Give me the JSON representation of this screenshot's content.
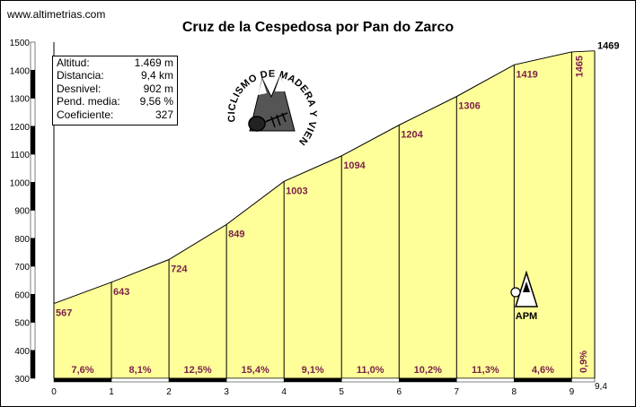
{
  "site": "www.altimetrias.com",
  "title": "Cruz de la Cespedosa por Pan do Zarco",
  "stats": [
    {
      "label": "Altitud:",
      "value": "1.469 m"
    },
    {
      "label": "Distancia:",
      "value": "9,4 km"
    },
    {
      "label": "Desnivel:",
      "value": "902 m"
    },
    {
      "label": "Pend. media:",
      "value": "9,56 %"
    },
    {
      "label": "Coeficiente:",
      "value": "327"
    }
  ],
  "logo": {
    "text": "CICLISMO DE MADERA Y VIENTO"
  },
  "apm": {
    "text": "APM"
  },
  "chart_data": {
    "type": "area",
    "x": [
      0,
      1,
      2,
      3,
      4,
      5,
      6,
      7,
      8,
      9,
      9.4
    ],
    "elevations": [
      567,
      643,
      724,
      849,
      1003,
      1094,
      1204,
      1306,
      1419,
      1465,
      1469
    ],
    "elevation_labels": [
      "567",
      "643",
      "724",
      "849",
      "1003",
      "1094",
      "1204",
      "1306",
      "1419",
      "1465",
      "1469"
    ],
    "grades": [
      "7,6%",
      "8,1%",
      "12,5%",
      "15,4%",
      "9,1%",
      "11,0%",
      "10,2%",
      "11,3%",
      "4,6%",
      "0,9%"
    ],
    "x_ticks": [
      "0",
      "1",
      "2",
      "3",
      "4",
      "5",
      "6",
      "7",
      "8",
      "9",
      "9,4"
    ],
    "y_ticks": [
      "300",
      "400",
      "500",
      "600",
      "700",
      "800",
      "900",
      "1000",
      "1100",
      "1200",
      "1300",
      "1400",
      "1500"
    ],
    "xlim": [
      0,
      9.4
    ],
    "ylim": [
      300,
      1500
    ],
    "fill_color": "#ffff99",
    "label_color": "#7a1f4a"
  }
}
